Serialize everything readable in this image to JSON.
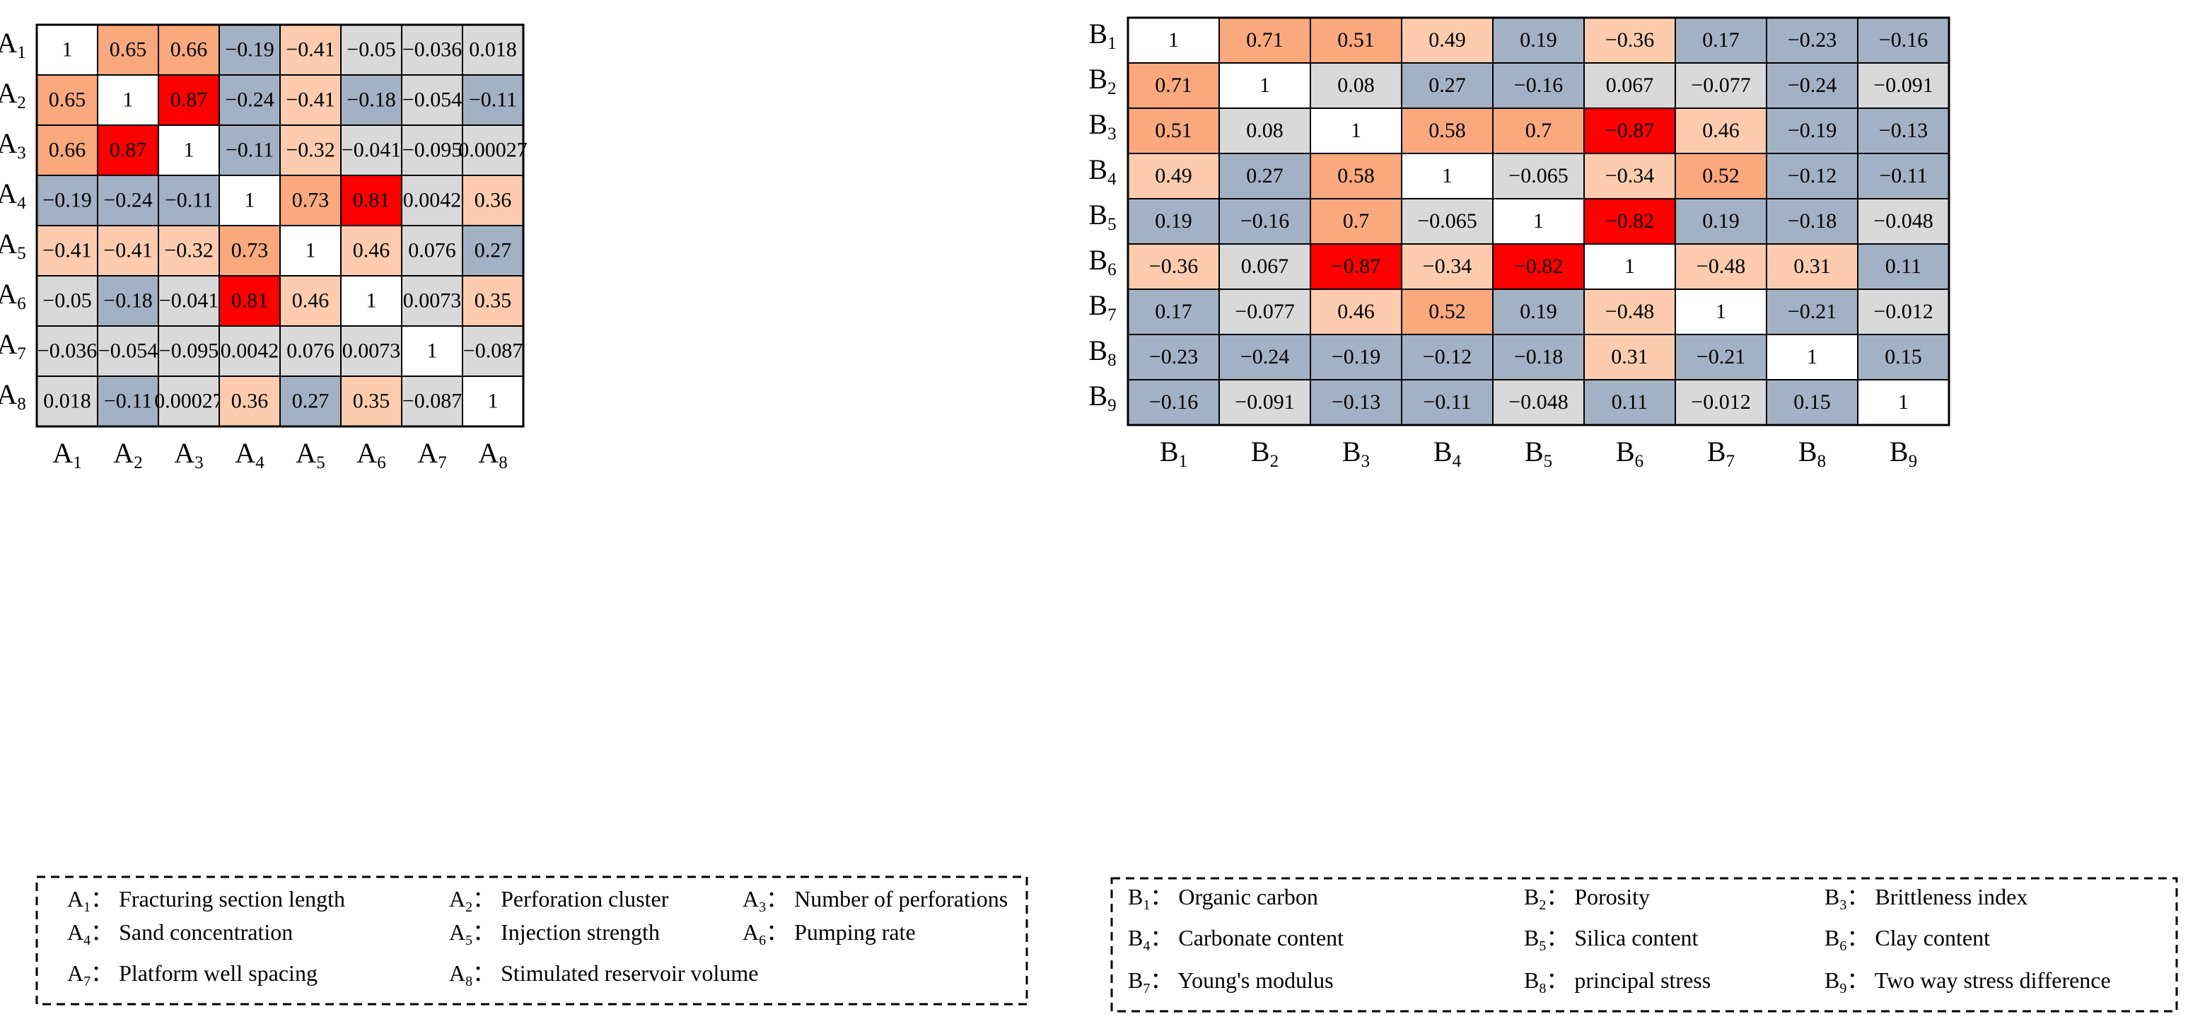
{
  "chart_data": [
    {
      "type": "heatmap",
      "title": "",
      "row_labels": [
        "A1",
        "A2",
        "A3",
        "A4",
        "A5",
        "A6",
        "A7",
        "A8"
      ],
      "col_labels": [
        "A1",
        "A2",
        "A3",
        "A4",
        "A5",
        "A6",
        "A7",
        "A8"
      ],
      "label_base": "A",
      "values": [
        [
          "1",
          "0.65",
          "0.66",
          "−0.19",
          "−0.41",
          "−0.05",
          "−0.036",
          "0.018"
        ],
        [
          "0.65",
          "1",
          "0.87",
          "−0.24",
          "−0.41",
          "−0.18",
          "−0.054",
          "−0.11"
        ],
        [
          "0.66",
          "0.87",
          "1",
          "−0.11",
          "−0.32",
          "−0.041",
          "−0.095",
          "0.00027"
        ],
        [
          "−0.19",
          "−0.24",
          "−0.11",
          "1",
          "0.73",
          "0.81",
          "0.0042",
          "0.36"
        ],
        [
          "−0.41",
          "−0.41",
          "−0.32",
          "0.73",
          "1",
          "0.46",
          "0.076",
          "0.27"
        ],
        [
          "−0.05",
          "−0.18",
          "−0.041",
          "0.81",
          "0.46",
          "1",
          "0.0073",
          "0.35"
        ],
        [
          "−0.036",
          "−0.054",
          "−0.095",
          "0.0042",
          "0.076",
          "0.0073",
          "1",
          "−0.087"
        ],
        [
          "0.018",
          "−0.11",
          "0.00027",
          "0.36",
          "0.27",
          "0.35",
          "−0.087",
          "1"
        ]
      ],
      "legend": [
        {
          "sym": "A",
          "sub": "1",
          "text": "Fracturing section length"
        },
        {
          "sym": "A",
          "sub": "2",
          "text": "Perforation cluster"
        },
        {
          "sym": "A",
          "sub": "3",
          "text": "Number of perforations"
        },
        {
          "sym": "A",
          "sub": "4",
          "text": "Sand concentration"
        },
        {
          "sym": "A",
          "sub": "5",
          "text": "Injection strength"
        },
        {
          "sym": "A",
          "sub": "6",
          "text": "Pumping rate"
        },
        {
          "sym": "A",
          "sub": "7",
          "text": "Platform well spacing"
        },
        {
          "sym": "A",
          "sub": "8",
          "text": "Stimulated reservoir volume"
        }
      ],
      "legend_separator": "："
    },
    {
      "type": "heatmap",
      "title": "",
      "row_labels": [
        "B1",
        "B2",
        "B3",
        "B4",
        "B5",
        "B6",
        "B7",
        "B8",
        "B9"
      ],
      "col_labels": [
        "B1",
        "B2",
        "B3",
        "B4",
        "B5",
        "B6",
        "B7",
        "B8",
        "B9"
      ],
      "label_base": "B",
      "values": [
        [
          "1",
          "0.71",
          "0.51",
          "0.49",
          "0.19",
          "−0.36",
          "0.17",
          "−0.23",
          "−0.16"
        ],
        [
          "0.71",
          "1",
          "0.08",
          "0.27",
          "−0.16",
          "0.067",
          "−0.077",
          "−0.24",
          "−0.091"
        ],
        [
          "0.51",
          "0.08",
          "1",
          "0.58",
          "0.7",
          "−0.87",
          "0.46",
          "−0.19",
          "−0.13"
        ],
        [
          "0.49",
          "0.27",
          "0.58",
          "1",
          "−0.065",
          "−0.34",
          "0.52",
          "−0.12",
          "−0.11"
        ],
        [
          "0.19",
          "−0.16",
          "0.7",
          "−0.065",
          "1",
          "−0.82",
          "0.19",
          "−0.18",
          "−0.048"
        ],
        [
          "−0.36",
          "0.067",
          "−0.87",
          "−0.34",
          "−0.82",
          "1",
          "−0.48",
          "0.31",
          "0.11"
        ],
        [
          "0.17",
          "−0.077",
          "0.46",
          "0.52",
          "0.19",
          "−0.48",
          "1",
          "−0.21",
          "−0.012"
        ],
        [
          "−0.23",
          "−0.24",
          "−0.19",
          "−0.12",
          "−0.18",
          "0.31",
          "−0.21",
          "1",
          "0.15"
        ],
        [
          "−0.16",
          "−0.091",
          "−0.13",
          "−0.11",
          "−0.048",
          "0.11",
          "−0.012",
          "0.15",
          "1"
        ]
      ],
      "legend": [
        {
          "sym": "B",
          "sub": "1",
          "text": "Organic carbon"
        },
        {
          "sym": "B",
          "sub": "2",
          "text": "Porosity"
        },
        {
          "sym": "B",
          "sub": "3",
          "text": "Brittleness index"
        },
        {
          "sym": "B",
          "sub": "4",
          "text": "Carbonate content"
        },
        {
          "sym": "B",
          "sub": "5",
          "text": "Silica content"
        },
        {
          "sym": "B",
          "sub": "6",
          "text": "Clay content"
        },
        {
          "sym": "B",
          "sub": "7",
          "text": "Young's modulus"
        },
        {
          "sym": "B",
          "sub": "8",
          "text": "principal stress"
        },
        {
          "sym": "B",
          "sub": "9",
          "text": "Two way stress difference"
        }
      ],
      "legend_separator": "："
    }
  ],
  "colors": {
    "diagonal": "#ffffff",
    "strong_positive": "#ff0000",
    "moderate_positive": "#f9a97d",
    "weak_positive": "#fdccae",
    "negative": "#a3b1c4",
    "near_zero": "#d9d9d9",
    "grid_line": "#000000",
    "legend_border": "#000000"
  }
}
